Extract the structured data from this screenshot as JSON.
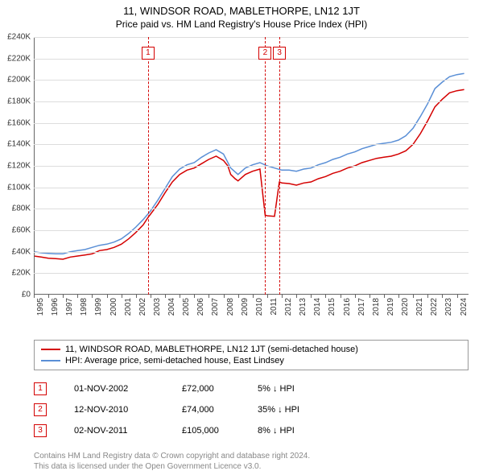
{
  "title": "11, WINDSOR ROAD, MABLETHORPE, LN12 1JT",
  "subtitle": "Price paid vs. HM Land Registry's House Price Index (HPI)",
  "chart": {
    "type": "line",
    "xlim": [
      1995,
      2024.8
    ],
    "ylim": [
      0,
      240000
    ],
    "ytick_step": 20000,
    "yticks": [
      "£0",
      "£20K",
      "£40K",
      "£60K",
      "£80K",
      "£100K",
      "£120K",
      "£140K",
      "£160K",
      "£180K",
      "£200K",
      "£220K",
      "£240K"
    ],
    "xticks": [
      1995,
      1996,
      1997,
      1998,
      1999,
      2000,
      2001,
      2002,
      2003,
      2004,
      2005,
      2006,
      2007,
      2008,
      2009,
      2010,
      2011,
      2012,
      2013,
      2014,
      2015,
      2016,
      2017,
      2018,
      2019,
      2020,
      2021,
      2022,
      2023,
      2024
    ],
    "grid_color": "#dddddd",
    "background_color": "#ffffff",
    "axis_color": "#666666",
    "tick_font_size": 10,
    "series": [
      {
        "name": "property",
        "label": "11, WINDSOR ROAD, MABLETHORPE, LN12 1JT (semi-detached house)",
        "color": "#d40000",
        "width": 1.5,
        "data": [
          [
            1995,
            36000
          ],
          [
            1995.5,
            35000
          ],
          [
            1996,
            34000
          ],
          [
            1996.5,
            33500
          ],
          [
            1997,
            33000
          ],
          [
            1997.5,
            35000
          ],
          [
            1998,
            36000
          ],
          [
            1998.5,
            37000
          ],
          [
            1999,
            38000
          ],
          [
            1999.5,
            41000
          ],
          [
            2000,
            42000
          ],
          [
            2000.5,
            44000
          ],
          [
            2001,
            47000
          ],
          [
            2001.5,
            52000
          ],
          [
            2002,
            58000
          ],
          [
            2002.5,
            65000
          ],
          [
            2002.83,
            72000
          ],
          [
            2003,
            75000
          ],
          [
            2003.5,
            84000
          ],
          [
            2004,
            95000
          ],
          [
            2004.5,
            105000
          ],
          [
            2005,
            112000
          ],
          [
            2005.5,
            116000
          ],
          [
            2006,
            118000
          ],
          [
            2006.5,
            122000
          ],
          [
            2007,
            126000
          ],
          [
            2007.5,
            129000
          ],
          [
            2008,
            125000
          ],
          [
            2008.3,
            120000
          ],
          [
            2008.5,
            112000
          ],
          [
            2008.8,
            108000
          ],
          [
            2009,
            106000
          ],
          [
            2009.5,
            112000
          ],
          [
            2010,
            115000
          ],
          [
            2010.5,
            117000
          ],
          [
            2010.86,
            74000
          ],
          [
            2010.87,
            74000
          ],
          [
            2011,
            73500
          ],
          [
            2011.5,
            73000
          ],
          [
            2011.83,
            105000
          ],
          [
            2011.84,
            105000
          ],
          [
            2012,
            104000
          ],
          [
            2012.5,
            103500
          ],
          [
            2013,
            102000
          ],
          [
            2013.5,
            104000
          ],
          [
            2014,
            105000
          ],
          [
            2014.5,
            108000
          ],
          [
            2015,
            110000
          ],
          [
            2015.5,
            113000
          ],
          [
            2016,
            115000
          ],
          [
            2016.5,
            118000
          ],
          [
            2017,
            120000
          ],
          [
            2017.5,
            123000
          ],
          [
            2018,
            125000
          ],
          [
            2018.5,
            127000
          ],
          [
            2019,
            128000
          ],
          [
            2019.5,
            129000
          ],
          [
            2020,
            131000
          ],
          [
            2020.5,
            134000
          ],
          [
            2021,
            140000
          ],
          [
            2021.5,
            150000
          ],
          [
            2022,
            162000
          ],
          [
            2022.5,
            175000
          ],
          [
            2023,
            182000
          ],
          [
            2023.5,
            188000
          ],
          [
            2024,
            190000
          ],
          [
            2024.5,
            191000
          ]
        ]
      },
      {
        "name": "hpi",
        "label": "HPI: Average price, semi-detached house, East Lindsey",
        "color": "#5a8fd6",
        "width": 1.5,
        "data": [
          [
            1995,
            40000
          ],
          [
            1995.5,
            39000
          ],
          [
            1996,
            38500
          ],
          [
            1996.5,
            38000
          ],
          [
            1997,
            38000
          ],
          [
            1997.5,
            40000
          ],
          [
            1998,
            41000
          ],
          [
            1998.5,
            42000
          ],
          [
            1999,
            44000
          ],
          [
            1999.5,
            46000
          ],
          [
            2000,
            47000
          ],
          [
            2000.5,
            49000
          ],
          [
            2001,
            52000
          ],
          [
            2001.5,
            57000
          ],
          [
            2002,
            63000
          ],
          [
            2002.5,
            70000
          ],
          [
            2003,
            78000
          ],
          [
            2003.5,
            88000
          ],
          [
            2004,
            99000
          ],
          [
            2004.5,
            110000
          ],
          [
            2005,
            117000
          ],
          [
            2005.5,
            121000
          ],
          [
            2006,
            123000
          ],
          [
            2006.5,
            128000
          ],
          [
            2007,
            132000
          ],
          [
            2007.5,
            135000
          ],
          [
            2008,
            131000
          ],
          [
            2008.5,
            118000
          ],
          [
            2009,
            112000
          ],
          [
            2009.5,
            118000
          ],
          [
            2010,
            121000
          ],
          [
            2010.5,
            123000
          ],
          [
            2011,
            120000
          ],
          [
            2011.5,
            118000
          ],
          [
            2012,
            116000
          ],
          [
            2012.5,
            116000
          ],
          [
            2013,
            115000
          ],
          [
            2013.5,
            117000
          ],
          [
            2014,
            118000
          ],
          [
            2014.5,
            121000
          ],
          [
            2015,
            123000
          ],
          [
            2015.5,
            126000
          ],
          [
            2016,
            128000
          ],
          [
            2016.5,
            131000
          ],
          [
            2017,
            133000
          ],
          [
            2017.5,
            136000
          ],
          [
            2018,
            138000
          ],
          [
            2018.5,
            140000
          ],
          [
            2019,
            141000
          ],
          [
            2019.5,
            142000
          ],
          [
            2020,
            144000
          ],
          [
            2020.5,
            148000
          ],
          [
            2021,
            155000
          ],
          [
            2021.5,
            166000
          ],
          [
            2022,
            178000
          ],
          [
            2022.5,
            192000
          ],
          [
            2023,
            198000
          ],
          [
            2023.5,
            203000
          ],
          [
            2024,
            205000
          ],
          [
            2024.5,
            206000
          ]
        ]
      }
    ],
    "markers": [
      {
        "n": "1",
        "x": 2002.83,
        "color": "#d40000",
        "line_color": "#d40000"
      },
      {
        "n": "2",
        "x": 2010.86,
        "color": "#d40000",
        "line_color": "#d40000"
      },
      {
        "n": "3",
        "x": 2011.84,
        "color": "#d40000",
        "line_color": "#d40000"
      }
    ]
  },
  "legend": {
    "border_color": "#999999",
    "font_size": 11
  },
  "events": [
    {
      "n": "1",
      "date": "01-NOV-2002",
      "price": "£72,000",
      "delta": "5%  ↓  HPI",
      "color": "#d40000"
    },
    {
      "n": "2",
      "date": "12-NOV-2010",
      "price": "£74,000",
      "delta": "35%  ↓  HPI",
      "color": "#d40000"
    },
    {
      "n": "3",
      "date": "02-NOV-2011",
      "price": "£105,000",
      "delta": "8%  ↓  HPI",
      "color": "#d40000"
    }
  ],
  "footer": {
    "line1": "Contains HM Land Registry data © Crown copyright and database right 2024.",
    "line2": "This data is licensed under the Open Government Licence v3.0.",
    "color": "#888888"
  }
}
